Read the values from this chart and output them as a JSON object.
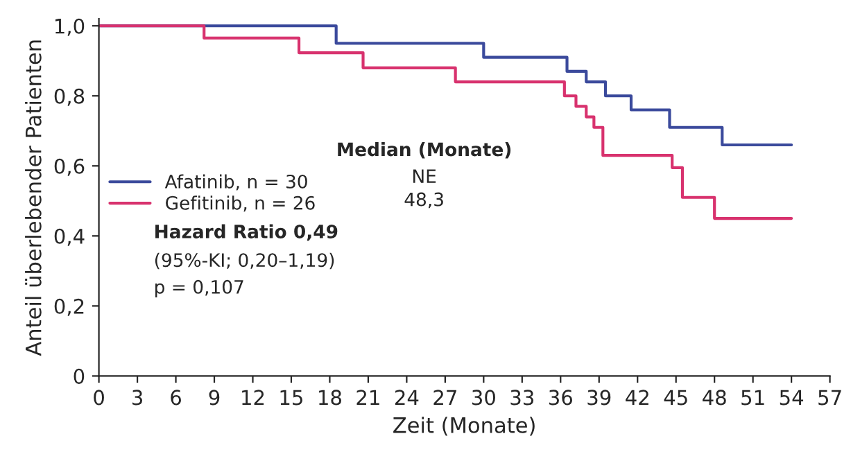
{
  "chart_data": {
    "type": "step",
    "xlabel": "Zeit (Monate)",
    "ylabel": "Anteil überlebender Patienten",
    "xlim": [
      0,
      57
    ],
    "xticks": [
      0,
      3,
      6,
      9,
      12,
      15,
      18,
      21,
      24,
      27,
      30,
      33,
      36,
      39,
      42,
      45,
      48,
      51,
      54,
      57
    ],
    "ylim": [
      0,
      1.02
    ],
    "yticks": [
      {
        "value": 0,
        "label": "0"
      },
      {
        "value": 0.2,
        "label": "0,2"
      },
      {
        "value": 0.4,
        "label": "0,4"
      },
      {
        "value": 0.6,
        "label": "0,6"
      },
      {
        "value": 0.8,
        "label": "0,8"
      },
      {
        "value": 1.0,
        "label": "1,0"
      }
    ],
    "series": [
      {
        "name": "Afatinib, n = 30",
        "color": "#3b4a9c",
        "x": [
          0,
          18.5,
          30,
          36.5,
          38,
          39.5,
          41.5,
          44.5,
          48.6,
          54
        ],
        "values": [
          1.0,
          0.95,
          0.91,
          0.87,
          0.84,
          0.8,
          0.76,
          0.71,
          0.66,
          0.66
        ]
      },
      {
        "name": "Gefitinib, n = 26",
        "color": "#d8326e",
        "x": [
          0,
          8.2,
          15.6,
          20.6,
          27.8,
          36.3,
          37.2,
          38,
          38.6,
          39.3,
          44.7,
          45.5,
          48,
          54
        ],
        "values": [
          1.0,
          0.965,
          0.923,
          0.88,
          0.84,
          0.8,
          0.77,
          0.74,
          0.71,
          0.63,
          0.595,
          0.51,
          0.45,
          0.45
        ]
      }
    ],
    "annotations": [
      "Median (Monate)",
      "NE",
      "48,3",
      "Hazard Ratio 0,49",
      "(95%-KI; 0,20–1,19)",
      "p = 0,107"
    ],
    "legend": "center left",
    "grid": false,
    "line_style": "solid",
    "marker": "none"
  }
}
